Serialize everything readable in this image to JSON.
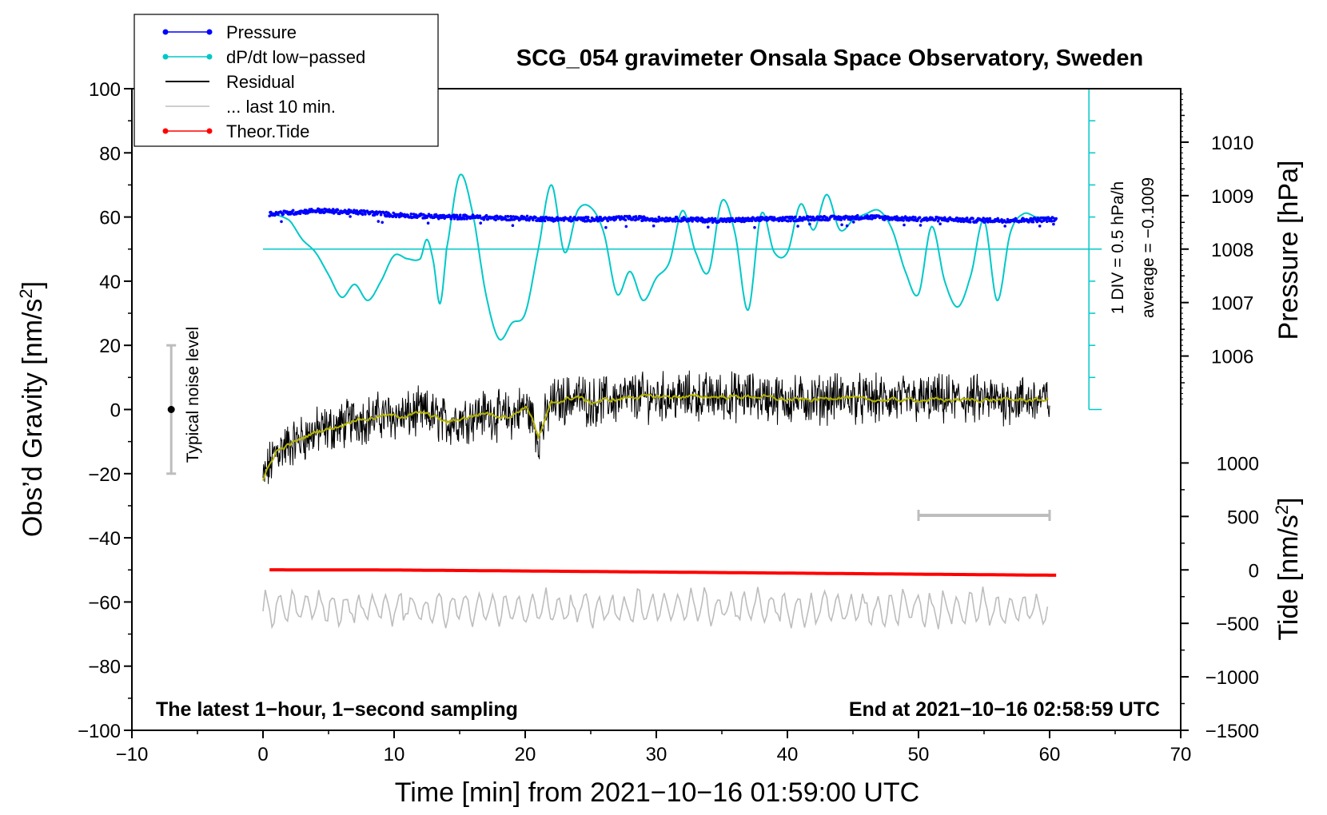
{
  "chart_data": {
    "type": "line",
    "title": "SCG_054 gravimeter Onsala Space Observatory, Sweden",
    "xlabel": "Time [min] from 2021−10−16 01:59:00 UTC",
    "ylabel_main": "Obs’d Gravity [nm/s",
    "ylabel_main_sup": "2",
    "ylabel_main_end": "]",
    "ylabel_pressure": "Pressure [hPa]",
    "ylabel_tide": "Tide [nm/s",
    "ylabel_tide_sup": "2",
    "ylabel_tide_end": "]",
    "xlim": [
      -10,
      70
    ],
    "ylim": [
      -100,
      100
    ],
    "x_ticks": [
      -10,
      0,
      10,
      20,
      30,
      40,
      50,
      60,
      70
    ],
    "x_tick_labels": [
      "−10",
      "0",
      "10",
      "20",
      "30",
      "40",
      "50",
      "60",
      "70"
    ],
    "y_ticks": [
      -100,
      -80,
      -60,
      -40,
      -20,
      0,
      20,
      40,
      60,
      80,
      100
    ],
    "y_tick_labels": [
      "−100",
      "−80",
      "−60",
      "−40",
      "−20",
      "0",
      "20",
      "40",
      "60",
      "80",
      "100"
    ],
    "pressure_axis": {
      "ticks": [
        1006,
        1007,
        1008,
        1009,
        1010
      ],
      "tick_labels": [
        "1006",
        "1007",
        "1008",
        "1009",
        "1010"
      ],
      "gravity_at_1008": 50,
      "gravity_per_hpa": 16.667
    },
    "tide_axis": {
      "ticks": [
        -1500,
        -1000,
        -500,
        0,
        500,
        1000
      ],
      "tick_labels": [
        "−1500",
        "−1000",
        "−500",
        "0",
        "500",
        "1000"
      ],
      "gravity_at_zero": -50,
      "gravity_per_unit": 0.03333
    },
    "dpdt_scale": {
      "label_div": "1 DIV = 0.5 hPa/h",
      "label_avg": "average = −0.1009",
      "x": 63,
      "y_range": [
        0,
        100
      ],
      "baseline": 50,
      "div_count": 10
    },
    "legend": [
      {
        "label": "Pressure",
        "color": "#0000ff",
        "marker": true
      },
      {
        "label": "dP/dt low−passed",
        "color": "#00c8c8",
        "marker": true
      },
      {
        "label": "Residual",
        "color": "#000000",
        "marker": false
      },
      {
        "label": "... last 10 min.",
        "color": "#bdbdbd",
        "marker": false
      },
      {
        "label": "Theor.Tide",
        "color": "#ff0000",
        "marker": true
      }
    ],
    "noise_bar": {
      "x": -7,
      "y_low": -20,
      "y_high": 20,
      "center": 0,
      "label": "Typical noise level"
    },
    "last10_bar": {
      "x_start": 50,
      "x_end": 60,
      "y": -33
    },
    "note_left": "The latest 1−hour, 1−second sampling",
    "note_right": "End at 2021−10−16 02:58:59 UTC",
    "series": [
      {
        "name": "Pressure",
        "unit": "hPa",
        "color": "#0000ff",
        "x": [
          0.5,
          2,
          4,
          6,
          8,
          10,
          12,
          14,
          16,
          18,
          20,
          22,
          24,
          26,
          28,
          30,
          32,
          34,
          36,
          38,
          40,
          42,
          44,
          46,
          48,
          50,
          52,
          54,
          56,
          58,
          60.5
        ],
        "values": [
          1008.66,
          1008.68,
          1008.72,
          1008.7,
          1008.68,
          1008.64,
          1008.62,
          1008.6,
          1008.6,
          1008.58,
          1008.58,
          1008.56,
          1008.56,
          1008.56,
          1008.58,
          1008.56,
          1008.56,
          1008.54,
          1008.54,
          1008.56,
          1008.56,
          1008.58,
          1008.58,
          1008.6,
          1008.58,
          1008.56,
          1008.56,
          1008.54,
          1008.54,
          1008.54,
          1008.56
        ]
      },
      {
        "name": "dP/dt low−passed",
        "unit": "gravity-scaled",
        "color": "#00c8c8",
        "x": [
          0.5,
          2,
          3,
          4,
          5,
          6,
          7,
          8,
          9,
          10,
          11,
          12,
          12.5,
          13,
          13.5,
          14,
          15,
          16,
          17,
          18,
          19,
          20,
          21,
          22,
          23,
          24,
          25,
          26,
          27,
          28,
          29,
          30,
          31,
          32,
          33,
          34,
          35,
          36,
          37,
          38,
          39,
          40,
          41,
          42,
          43,
          44,
          45,
          46,
          47,
          48,
          49,
          50,
          51,
          52,
          53,
          54,
          55,
          56,
          57,
          58,
          59,
          60
        ],
        "values": [
          61,
          59,
          53,
          49,
          42,
          35,
          39,
          34,
          40,
          48,
          47,
          47,
          53,
          46,
          33,
          50,
          73,
          61,
          36,
          22,
          27,
          30,
          50,
          70,
          49,
          62,
          63,
          55,
          36,
          43,
          34,
          41,
          46,
          62,
          49,
          43,
          65,
          55,
          31,
          61,
          49,
          49,
          64,
          56,
          67,
          56,
          59,
          61,
          62,
          56,
          43,
          36,
          57,
          40,
          32,
          42,
          59,
          34,
          55,
          61,
          60,
          60
        ]
      },
      {
        "name": "Residual",
        "unit": "nm/s2",
        "color": "#000000",
        "smooth_color": "#b2b200",
        "x": [
          0,
          1,
          2,
          3,
          4,
          5,
          6,
          7,
          8,
          9,
          10,
          11,
          12,
          13,
          14,
          15,
          16,
          17,
          18,
          19,
          20,
          20.5,
          21,
          22,
          23,
          24,
          25,
          26,
          27,
          28,
          30,
          32,
          34,
          36,
          38,
          40,
          42,
          44,
          46,
          48,
          50,
          52,
          54,
          56,
          58,
          60
        ],
        "values": [
          -22,
          -13,
          -11,
          -9,
          -7,
          -6,
          -5,
          -3,
          -3,
          -2,
          -2,
          -2,
          -1,
          -2,
          -4,
          -3,
          -2,
          -1,
          -2,
          -2,
          1,
          -2,
          -9,
          2,
          3,
          4,
          2,
          3,
          3,
          4,
          4,
          4,
          4,
          4,
          4,
          3,
          3,
          4,
          3,
          3,
          3,
          3,
          3,
          3,
          3,
          3
        ],
        "noise_amplitude": 6
      },
      {
        "name": "... last 10 min.",
        "unit": "nm/s2 (offset)",
        "color": "#bdbdbd",
        "x_range": [
          0,
          60
        ],
        "baseline": -62,
        "amplitude": 5
      },
      {
        "name": "Theor.Tide",
        "unit": "nm/s2",
        "color": "#ff0000",
        "x": [
          0.5,
          10,
          20,
          30,
          40,
          50,
          60.5
        ],
        "values": [
          1,
          -1,
          -10,
          -20,
          -30,
          -40,
          -50
        ]
      }
    ]
  }
}
